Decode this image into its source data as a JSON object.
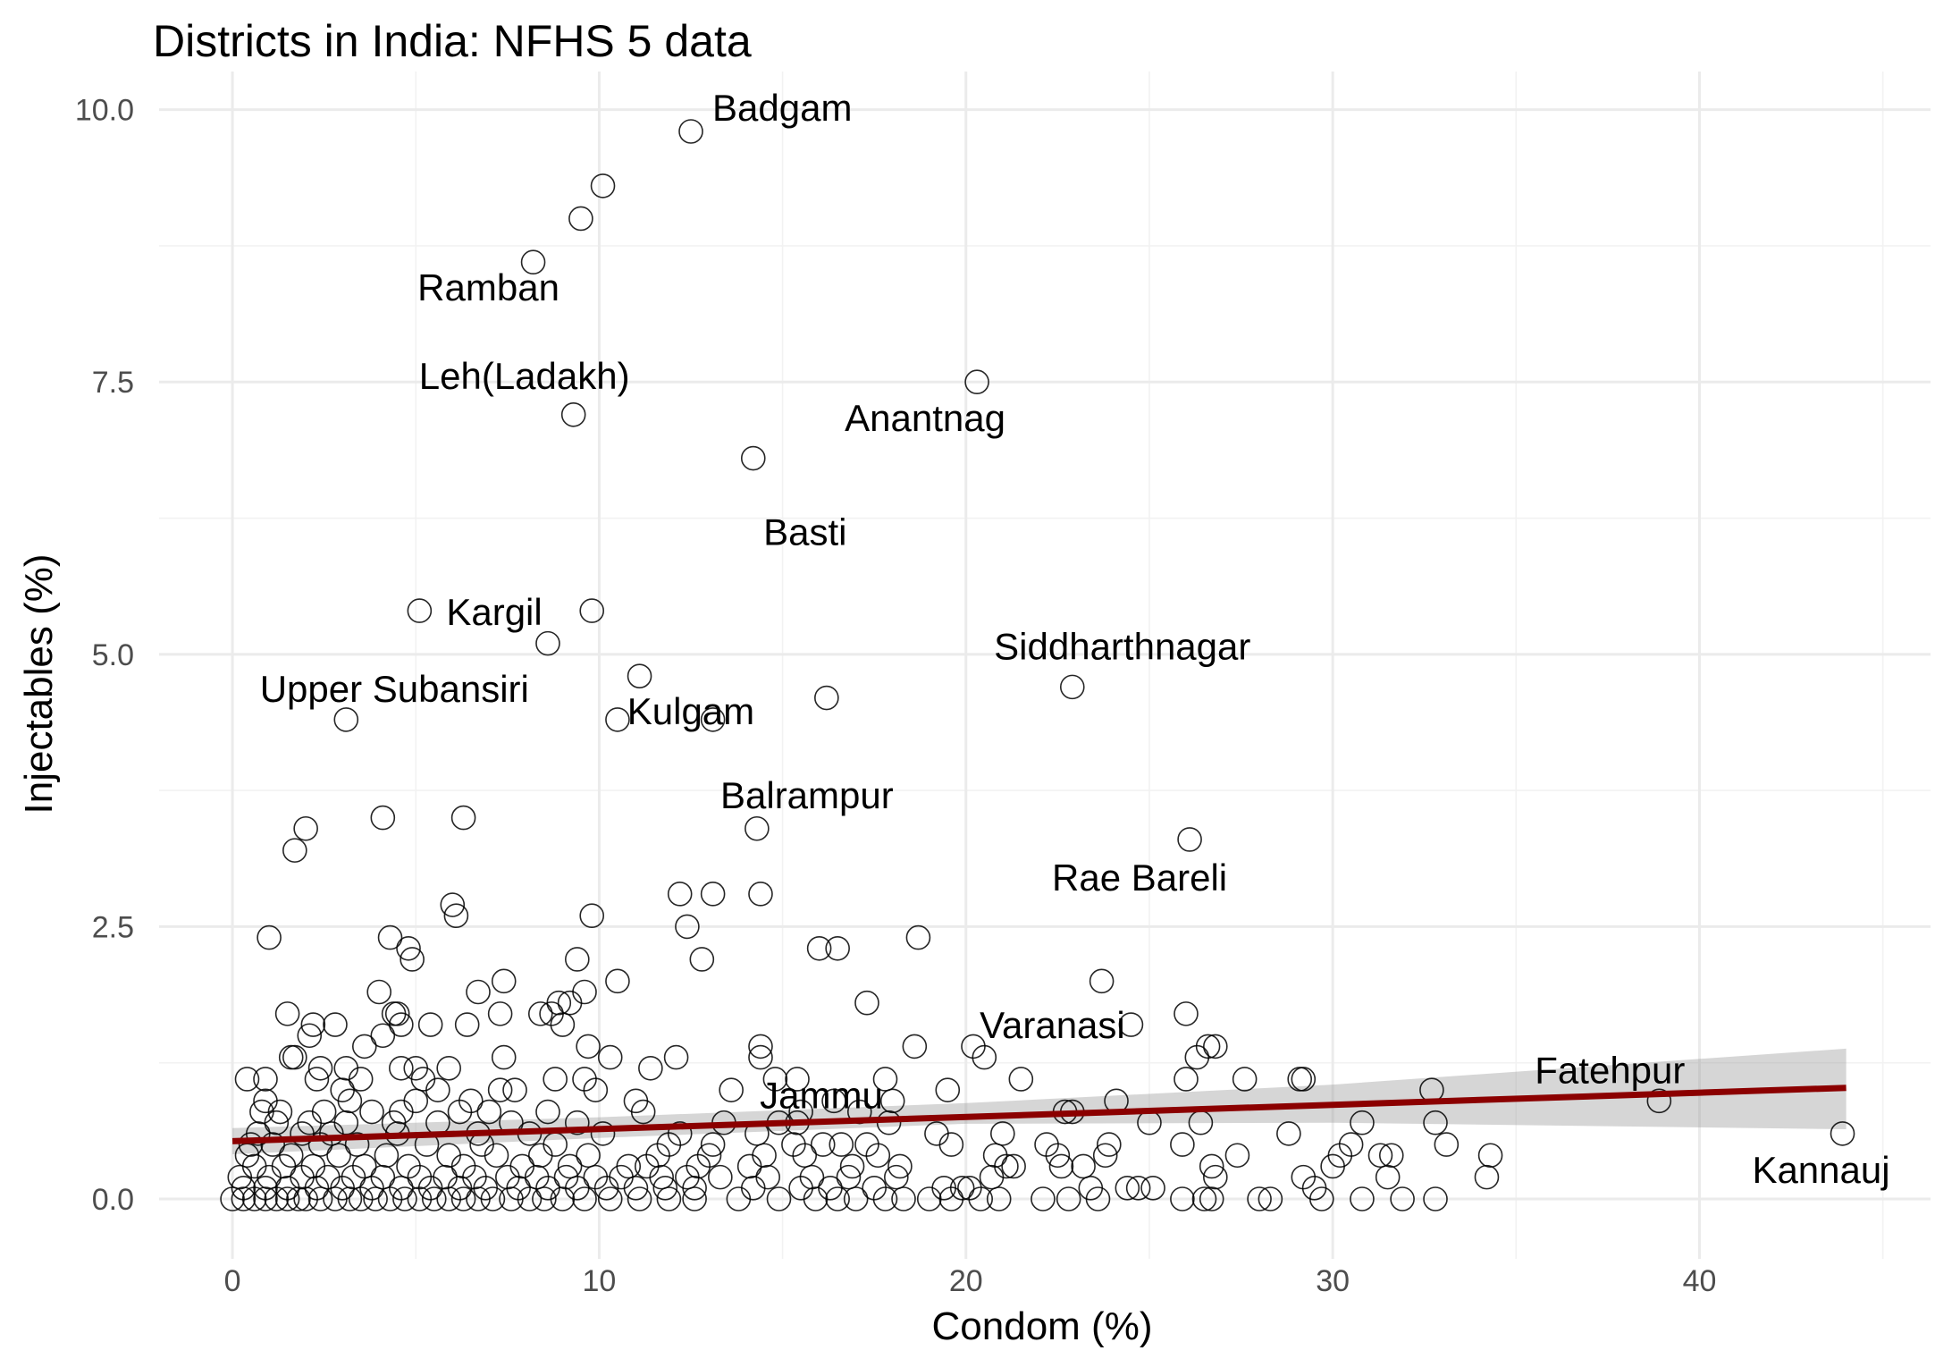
{
  "chart_data": {
    "type": "scatter",
    "title": "Districts in India: NFHS 5 data",
    "xlabel": "Condom (%)",
    "ylabel": "Injectables (%)",
    "xlim": [
      -2,
      46.3
    ],
    "ylim": [
      -0.55,
      10.35
    ],
    "x_ticks": [
      0,
      10,
      20,
      30,
      40
    ],
    "y_ticks": [
      0.0,
      2.5,
      5.0,
      7.5,
      10.0
    ],
    "x_tick_labels": [
      "0",
      "10",
      "20",
      "30",
      "40"
    ],
    "y_tick_labels": [
      "0.0",
      "2.5",
      "5.0",
      "7.5",
      "10.0"
    ],
    "grid": true,
    "legend": "none",
    "colors": {
      "points": "#000000",
      "fit_line": "#8b0000",
      "confidence_band": "#999999"
    },
    "fit_line": {
      "x": [
        0,
        44
      ],
      "y": [
        0.53,
        1.02
      ]
    },
    "confidence_band": {
      "x": [
        0,
        10,
        20,
        30,
        44
      ],
      "upper": [
        0.65,
        0.75,
        0.88,
        1.05,
        1.38
      ],
      "lower": [
        0.41,
        0.56,
        0.69,
        0.7,
        0.64
      ]
    },
    "labeled_points": [
      {
        "label": "Badgam",
        "x": 12.5,
        "y": 9.8
      },
      {
        "label": "Ramban",
        "x": 8.2,
        "y": 8.6
      },
      {
        "label": "Leh(Ladakh)",
        "x": 9.3,
        "y": 7.2
      },
      {
        "label": "Anantnag",
        "x": 20.3,
        "y": 7.5
      },
      {
        "label": "Basti",
        "x": 14.2,
        "y": 6.8
      },
      {
        "label": "Kargil",
        "x": 5.1,
        "y": 5.4
      },
      {
        "label": "Siddharthnagar",
        "x": 22.9,
        "y": 4.7
      },
      {
        "label": "Upper Subansiri",
        "x": 3.1,
        "y": 4.4
      },
      {
        "label": "Kulgam",
        "x": 10.5,
        "y": 4.4
      },
      {
        "label": "Balrampur",
        "x": 14.3,
        "y": 3.4
      },
      {
        "label": "Rae Bareli",
        "x": 26.1,
        "y": 3.3
      },
      {
        "label": "Varanasi",
        "x": 24.5,
        "y": 1.6
      },
      {
        "label": "Jammu",
        "x": 14.4,
        "y": 1.3
      },
      {
        "label": "Fatehpur",
        "x": 38.9,
        "y": 0.9
      },
      {
        "label": "Kannauj",
        "x": 43.9,
        "y": 0.6
      }
    ],
    "points": [
      [
        12.5,
        9.8
      ],
      [
        10.1,
        9.3
      ],
      [
        9.5,
        9.0
      ],
      [
        8.2,
        8.6
      ],
      [
        20.3,
        7.5
      ],
      [
        9.3,
        7.2
      ],
      [
        14.2,
        6.8
      ],
      [
        5.1,
        5.4
      ],
      [
        9.8,
        5.4
      ],
      [
        8.6,
        5.1
      ],
      [
        11.1,
        4.8
      ],
      [
        22.9,
        4.7
      ],
      [
        16.2,
        4.6
      ],
      [
        3.1,
        4.4
      ],
      [
        10.5,
        4.4
      ],
      [
        13.1,
        4.4
      ],
      [
        4.1,
        3.5
      ],
      [
        6.3,
        3.5
      ],
      [
        2.0,
        3.4
      ],
      [
        14.3,
        3.4
      ],
      [
        26.1,
        3.3
      ],
      [
        1.7,
        3.2
      ],
      [
        12.2,
        2.8
      ],
      [
        13.1,
        2.8
      ],
      [
        14.4,
        2.8
      ],
      [
        6.0,
        2.7
      ],
      [
        6.1,
        2.6
      ],
      [
        9.8,
        2.6
      ],
      [
        12.4,
        2.5
      ],
      [
        1.0,
        2.4
      ],
      [
        4.3,
        2.4
      ],
      [
        18.7,
        2.4
      ],
      [
        4.8,
        2.3
      ],
      [
        16.0,
        2.3
      ],
      [
        16.5,
        2.3
      ],
      [
        4.9,
        2.2
      ],
      [
        9.4,
        2.2
      ],
      [
        12.8,
        2.2
      ],
      [
        7.4,
        2.0
      ],
      [
        10.5,
        2.0
      ],
      [
        23.7,
        2.0
      ],
      [
        4.0,
        1.9
      ],
      [
        6.7,
        1.9
      ],
      [
        9.6,
        1.9
      ],
      [
        17.3,
        1.8
      ],
      [
        8.9,
        1.8
      ],
      [
        9.2,
        1.8
      ],
      [
        1.5,
        1.7
      ],
      [
        4.4,
        1.7
      ],
      [
        4.5,
        1.7
      ],
      [
        7.3,
        1.7
      ],
      [
        8.4,
        1.7
      ],
      [
        8.7,
        1.7
      ],
      [
        26.0,
        1.7
      ],
      [
        2.2,
        1.6
      ],
      [
        2.8,
        1.6
      ],
      [
        4.6,
        1.6
      ],
      [
        5.4,
        1.6
      ],
      [
        6.4,
        1.6
      ],
      [
        9.0,
        1.6
      ],
      [
        24.5,
        1.6
      ],
      [
        2.1,
        1.5
      ],
      [
        4.1,
        1.5
      ],
      [
        3.6,
        1.4
      ],
      [
        14.4,
        1.4
      ],
      [
        18.6,
        1.4
      ],
      [
        20.2,
        1.4
      ],
      [
        26.8,
        1.4
      ],
      [
        26.6,
        1.4
      ],
      [
        9.7,
        1.4
      ],
      [
        1.6,
        1.3
      ],
      [
        1.7,
        1.3
      ],
      [
        7.4,
        1.3
      ],
      [
        10.3,
        1.3
      ],
      [
        12.1,
        1.3
      ],
      [
        14.4,
        1.3
      ],
      [
        20.5,
        1.3
      ],
      [
        26.3,
        1.3
      ],
      [
        2.4,
        1.2
      ],
      [
        3.1,
        1.2
      ],
      [
        4.6,
        1.2
      ],
      [
        5.0,
        1.2
      ],
      [
        5.9,
        1.2
      ],
      [
        11.4,
        1.2
      ],
      [
        21.5,
        1.1
      ],
      [
        27.6,
        1.1
      ],
      [
        29.1,
        1.1
      ],
      [
        29.2,
        1.1
      ],
      [
        0.4,
        1.1
      ],
      [
        0.9,
        1.1
      ],
      [
        2.3,
        1.1
      ],
      [
        3.5,
        1.1
      ],
      [
        5.2,
        1.1
      ],
      [
        8.8,
        1.1
      ],
      [
        9.6,
        1.1
      ],
      [
        14.8,
        1.1
      ],
      [
        15.4,
        1.1
      ],
      [
        17.8,
        1.1
      ],
      [
        26.0,
        1.1
      ],
      [
        3.0,
        1.0
      ],
      [
        5.6,
        1.0
      ],
      [
        7.3,
        1.0
      ],
      [
        7.7,
        1.0
      ],
      [
        9.9,
        1.0
      ],
      [
        13.6,
        1.0
      ],
      [
        19.5,
        1.0
      ],
      [
        32.7,
        1.0
      ],
      [
        0.9,
        0.9
      ],
      [
        3.2,
        0.9
      ],
      [
        5.0,
        0.9
      ],
      [
        6.5,
        0.9
      ],
      [
        11.0,
        0.9
      ],
      [
        16.4,
        0.9
      ],
      [
        18.0,
        0.9
      ],
      [
        24.1,
        0.9
      ],
      [
        38.9,
        0.9
      ],
      [
        0.8,
        0.8
      ],
      [
        1.3,
        0.8
      ],
      [
        2.5,
        0.8
      ],
      [
        3.8,
        0.8
      ],
      [
        4.6,
        0.8
      ],
      [
        6.2,
        0.8
      ],
      [
        7.0,
        0.8
      ],
      [
        8.6,
        0.8
      ],
      [
        11.2,
        0.8
      ],
      [
        15.5,
        0.8
      ],
      [
        17.1,
        0.8
      ],
      [
        22.7,
        0.8
      ],
      [
        22.9,
        0.8
      ],
      [
        1.2,
        0.7
      ],
      [
        2.1,
        0.7
      ],
      [
        3.1,
        0.7
      ],
      [
        4.4,
        0.7
      ],
      [
        5.6,
        0.7
      ],
      [
        7.6,
        0.7
      ],
      [
        9.4,
        0.7
      ],
      [
        13.4,
        0.7
      ],
      [
        14.9,
        0.7
      ],
      [
        15.4,
        0.7
      ],
      [
        17.9,
        0.7
      ],
      [
        25.0,
        0.7
      ],
      [
        26.4,
        0.7
      ],
      [
        30.8,
        0.7
      ],
      [
        32.8,
        0.7
      ],
      [
        0.7,
        0.6
      ],
      [
        1.9,
        0.6
      ],
      [
        2.7,
        0.6
      ],
      [
        4.5,
        0.6
      ],
      [
        6.7,
        0.6
      ],
      [
        8.1,
        0.6
      ],
      [
        10.1,
        0.6
      ],
      [
        12.2,
        0.6
      ],
      [
        14.3,
        0.6
      ],
      [
        19.2,
        0.6
      ],
      [
        21.0,
        0.6
      ],
      [
        28.8,
        0.6
      ],
      [
        43.9,
        0.6
      ],
      [
        0.5,
        0.5
      ],
      [
        1.1,
        0.5
      ],
      [
        2.4,
        0.5
      ],
      [
        3.4,
        0.5
      ],
      [
        5.3,
        0.5
      ],
      [
        6.8,
        0.5
      ],
      [
        8.8,
        0.5
      ],
      [
        11.9,
        0.5
      ],
      [
        13.1,
        0.5
      ],
      [
        15.3,
        0.5
      ],
      [
        16.1,
        0.5
      ],
      [
        16.6,
        0.5
      ],
      [
        17.3,
        0.5
      ],
      [
        19.6,
        0.5
      ],
      [
        22.2,
        0.5
      ],
      [
        23.9,
        0.5
      ],
      [
        25.9,
        0.5
      ],
      [
        30.5,
        0.5
      ],
      [
        33.1,
        0.5
      ],
      [
        0.4,
        0.4
      ],
      [
        1.6,
        0.4
      ],
      [
        2.9,
        0.4
      ],
      [
        4.2,
        0.4
      ],
      [
        5.9,
        0.4
      ],
      [
        7.2,
        0.4
      ],
      [
        8.4,
        0.4
      ],
      [
        9.7,
        0.4
      ],
      [
        11.6,
        0.4
      ],
      [
        13.0,
        0.4
      ],
      [
        14.5,
        0.4
      ],
      [
        15.6,
        0.4
      ],
      [
        17.6,
        0.4
      ],
      [
        20.8,
        0.4
      ],
      [
        22.5,
        0.4
      ],
      [
        23.8,
        0.4
      ],
      [
        27.4,
        0.4
      ],
      [
        30.2,
        0.4
      ],
      [
        31.3,
        0.4
      ],
      [
        31.6,
        0.4
      ],
      [
        34.3,
        0.4
      ],
      [
        0.6,
        0.3
      ],
      [
        1.4,
        0.3
      ],
      [
        2.2,
        0.3
      ],
      [
        3.6,
        0.3
      ],
      [
        4.8,
        0.3
      ],
      [
        6.3,
        0.3
      ],
      [
        7.9,
        0.3
      ],
      [
        9.2,
        0.3
      ],
      [
        10.8,
        0.3
      ],
      [
        11.3,
        0.3
      ],
      [
        12.7,
        0.3
      ],
      [
        14.1,
        0.3
      ],
      [
        16.9,
        0.3
      ],
      [
        18.2,
        0.3
      ],
      [
        21.1,
        0.3
      ],
      [
        21.3,
        0.3
      ],
      [
        22.6,
        0.3
      ],
      [
        23.2,
        0.3
      ],
      [
        26.7,
        0.3
      ],
      [
        30.0,
        0.3
      ],
      [
        0.2,
        0.2
      ],
      [
        1.0,
        0.2
      ],
      [
        1.9,
        0.2
      ],
      [
        2.6,
        0.2
      ],
      [
        3.3,
        0.2
      ],
      [
        4.1,
        0.2
      ],
      [
        5.1,
        0.2
      ],
      [
        5.8,
        0.2
      ],
      [
        6.6,
        0.2
      ],
      [
        7.5,
        0.2
      ],
      [
        8.3,
        0.2
      ],
      [
        9.1,
        0.2
      ],
      [
        9.9,
        0.2
      ],
      [
        10.6,
        0.2
      ],
      [
        11.7,
        0.2
      ],
      [
        12.4,
        0.2
      ],
      [
        13.3,
        0.2
      ],
      [
        14.6,
        0.2
      ],
      [
        15.8,
        0.2
      ],
      [
        16.8,
        0.2
      ],
      [
        18.1,
        0.2
      ],
      [
        20.7,
        0.2
      ],
      [
        26.8,
        0.2
      ],
      [
        29.2,
        0.2
      ],
      [
        31.5,
        0.2
      ],
      [
        34.2,
        0.2
      ],
      [
        0.3,
        0.1
      ],
      [
        0.9,
        0.1
      ],
      [
        1.5,
        0.1
      ],
      [
        2.3,
        0.1
      ],
      [
        3.0,
        0.1
      ],
      [
        3.8,
        0.1
      ],
      [
        4.6,
        0.1
      ],
      [
        5.4,
        0.1
      ],
      [
        6.2,
        0.1
      ],
      [
        6.9,
        0.1
      ],
      [
        7.8,
        0.1
      ],
      [
        8.6,
        0.1
      ],
      [
        9.4,
        0.1
      ],
      [
        10.2,
        0.1
      ],
      [
        11.0,
        0.1
      ],
      [
        11.8,
        0.1
      ],
      [
        12.6,
        0.1
      ],
      [
        14.2,
        0.1
      ],
      [
        15.5,
        0.1
      ],
      [
        16.3,
        0.1
      ],
      [
        17.5,
        0.1
      ],
      [
        19.4,
        0.1
      ],
      [
        19.9,
        0.1
      ],
      [
        20.1,
        0.1
      ],
      [
        23.4,
        0.1
      ],
      [
        24.4,
        0.1
      ],
      [
        24.7,
        0.1
      ],
      [
        25.1,
        0.1
      ],
      [
        29.5,
        0.1
      ],
      [
        0.0,
        0.0
      ],
      [
        0.3,
        0.0
      ],
      [
        0.6,
        0.0
      ],
      [
        0.9,
        0.0
      ],
      [
        1.2,
        0.0
      ],
      [
        1.5,
        0.0
      ],
      [
        1.8,
        0.0
      ],
      [
        2.0,
        0.0
      ],
      [
        2.4,
        0.0
      ],
      [
        2.8,
        0.0
      ],
      [
        3.2,
        0.0
      ],
      [
        3.5,
        0.0
      ],
      [
        3.9,
        0.0
      ],
      [
        4.3,
        0.0
      ],
      [
        4.7,
        0.0
      ],
      [
        5.1,
        0.0
      ],
      [
        5.5,
        0.0
      ],
      [
        5.9,
        0.0
      ],
      [
        6.3,
        0.0
      ],
      [
        6.7,
        0.0
      ],
      [
        7.1,
        0.0
      ],
      [
        7.6,
        0.0
      ],
      [
        8.1,
        0.0
      ],
      [
        8.5,
        0.0
      ],
      [
        9.0,
        0.0
      ],
      [
        9.6,
        0.0
      ],
      [
        10.3,
        0.0
      ],
      [
        11.1,
        0.0
      ],
      [
        11.9,
        0.0
      ],
      [
        12.6,
        0.0
      ],
      [
        13.8,
        0.0
      ],
      [
        14.9,
        0.0
      ],
      [
        15.9,
        0.0
      ],
      [
        16.5,
        0.0
      ],
      [
        17.0,
        0.0
      ],
      [
        17.8,
        0.0
      ],
      [
        18.3,
        0.0
      ],
      [
        19.0,
        0.0
      ],
      [
        19.6,
        0.0
      ],
      [
        20.4,
        0.0
      ],
      [
        20.9,
        0.0
      ],
      [
        22.1,
        0.0
      ],
      [
        22.8,
        0.0
      ],
      [
        23.6,
        0.0
      ],
      [
        25.9,
        0.0
      ],
      [
        26.5,
        0.0
      ],
      [
        26.7,
        0.0
      ],
      [
        28.0,
        0.0
      ],
      [
        28.3,
        0.0
      ],
      [
        29.7,
        0.0
      ],
      [
        30.8,
        0.0
      ],
      [
        31.9,
        0.0
      ],
      [
        32.8,
        0.0
      ]
    ]
  }
}
